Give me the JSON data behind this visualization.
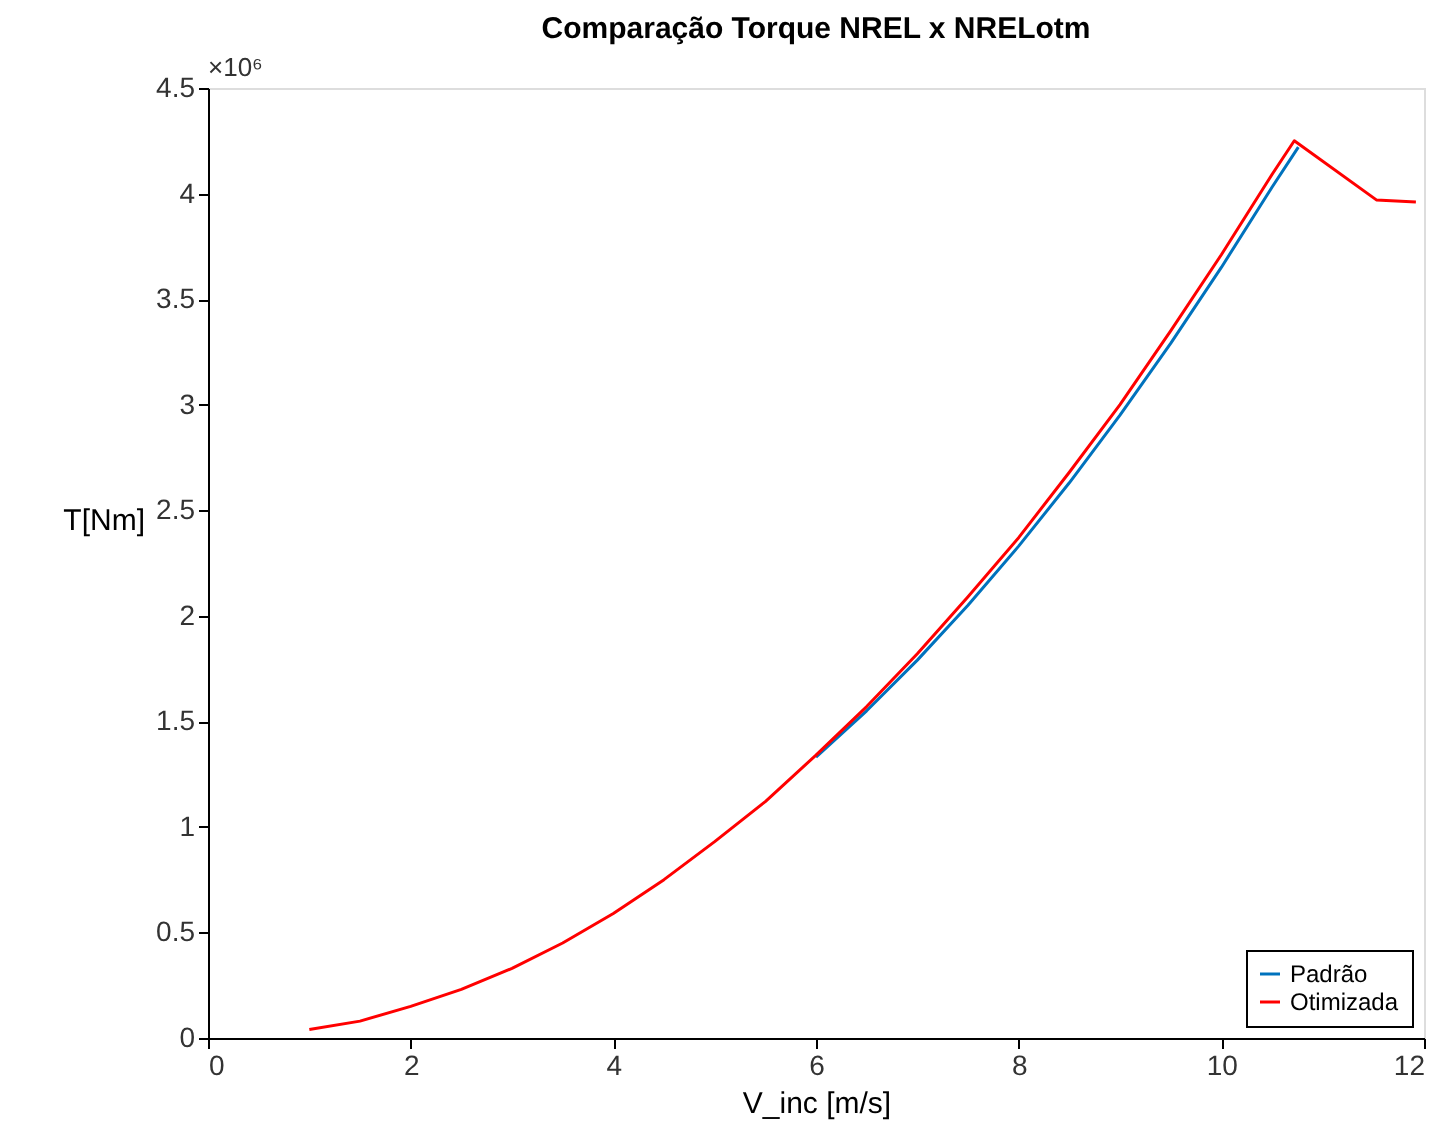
{
  "chart_data": {
    "type": "line",
    "title": "Comparação Torque NREL x NRELotm",
    "xlabel": "V_inc [m/s]",
    "ylabel": "T[Nm]",
    "annotations": [
      "×10⁶"
    ],
    "xlim": [
      0,
      12
    ],
    "xticks": [
      0,
      2,
      4,
      6,
      8,
      10,
      12
    ],
    "ylim": [
      0,
      4.5
    ],
    "yticks": [
      0,
      0.5,
      1,
      1.5,
      2,
      2.5,
      3,
      3.5,
      4,
      4.5
    ],
    "grid": false,
    "legend": "bottom right",
    "line_style": "solid",
    "marker": "none",
    "series": [
      {
        "name": "Padrão",
        "color": "#0072bd",
        "x": [
          6,
          6.5,
          7,
          7.5,
          8,
          8.5,
          9,
          9.5,
          10,
          10.5,
          10.76
        ],
        "values": [
          1.33,
          1.55,
          1.79,
          2.05,
          2.33,
          2.63,
          2.95,
          3.29,
          3.65,
          4.03,
          4.22
        ]
      },
      {
        "name": "Otimizada",
        "color": "#ff0000",
        "x": [
          1,
          1.5,
          2,
          2.5,
          3,
          3.5,
          4,
          4.5,
          5,
          5.5,
          6,
          6.5,
          7,
          7.5,
          8,
          8.5,
          9,
          9.5,
          10,
          10.5,
          10.72,
          11.53,
          11.92
        ],
        "values": [
          0.04,
          0.08,
          0.15,
          0.23,
          0.33,
          0.45,
          0.59,
          0.75,
          0.93,
          1.12,
          1.34,
          1.57,
          1.82,
          2.09,
          2.37,
          2.68,
          3.0,
          3.35,
          3.71,
          4.09,
          4.25,
          3.97,
          3.96
        ]
      }
    ]
  }
}
